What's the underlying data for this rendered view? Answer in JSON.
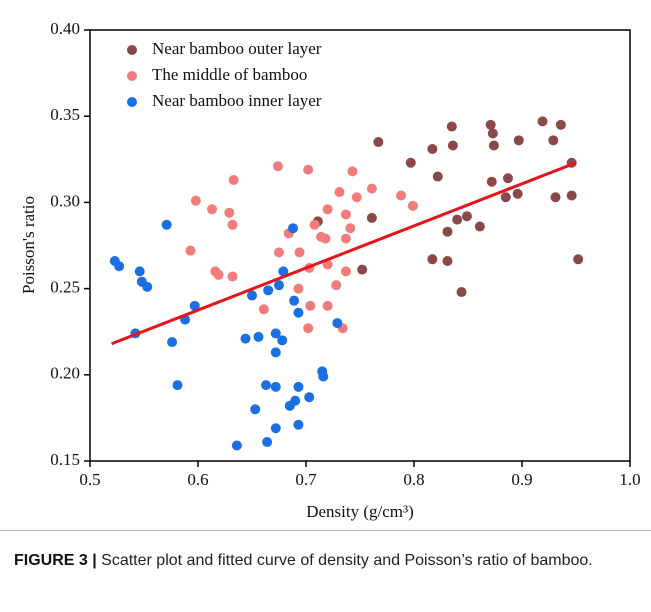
{
  "chart_data": {
    "type": "scatter",
    "xlabel": "Density (g/cm³)",
    "ylabel": "Poisson's ratio",
    "xlim": [
      0.5,
      1.0
    ],
    "ylim": [
      0.15,
      0.4
    ],
    "xticks": [
      0.5,
      0.6,
      0.7,
      0.8,
      0.9,
      {
        "value": 1.0,
        "label": "1.0"
      }
    ],
    "yticks": [
      0.15,
      {
        "value": 0.2,
        "label": "0.20"
      },
      0.25,
      {
        "value": 0.3,
        "label": "0.30"
      },
      0.35,
      {
        "value": 0.4,
        "label": "0.40"
      }
    ],
    "legend": "upper left",
    "series": [
      {
        "name": "Near bamboo outer layer",
        "color": "#8b4848",
        "x": [
          0.767,
          0.797,
          0.817,
          0.822,
          0.835,
          0.836,
          0.871,
          0.873,
          0.874,
          0.897,
          0.919,
          0.929,
          0.936,
          0.946,
          0.946,
          0.952,
          0.931,
          0.896,
          0.885,
          0.887,
          0.872,
          0.861,
          0.849,
          0.84,
          0.831,
          0.831,
          0.817,
          0.844,
          0.761,
          0.752,
          0.711
        ],
        "values": [
          0.335,
          0.323,
          0.331,
          0.315,
          0.344,
          0.333,
          0.345,
          0.34,
          0.333,
          0.336,
          0.347,
          0.336,
          0.345,
          0.323,
          0.304,
          0.267,
          0.303,
          0.305,
          0.303,
          0.314,
          0.312,
          0.286,
          0.292,
          0.29,
          0.283,
          0.266,
          0.267,
          0.248,
          0.291,
          0.261,
          0.289
        ]
      },
      {
        "name": "The middle of bamboo",
        "color": "#f27b7b",
        "x": [
          0.598,
          0.613,
          0.629,
          0.633,
          0.632,
          0.593,
          0.616,
          0.619,
          0.632,
          0.674,
          0.702,
          0.675,
          0.684,
          0.694,
          0.708,
          0.714,
          0.718,
          0.72,
          0.731,
          0.737,
          0.741,
          0.743,
          0.747,
          0.761,
          0.788,
          0.799,
          0.737,
          0.737,
          0.728,
          0.72,
          0.703,
          0.693,
          0.72,
          0.704,
          0.702,
          0.734,
          0.661
        ],
        "values": [
          0.301,
          0.296,
          0.294,
          0.313,
          0.287,
          0.272,
          0.26,
          0.258,
          0.257,
          0.321,
          0.319,
          0.271,
          0.282,
          0.271,
          0.287,
          0.28,
          0.279,
          0.296,
          0.306,
          0.293,
          0.285,
          0.318,
          0.303,
          0.308,
          0.304,
          0.298,
          0.279,
          0.26,
          0.252,
          0.264,
          0.262,
          0.25,
          0.24,
          0.24,
          0.227,
          0.227,
          0.238
        ]
      },
      {
        "name": "Near bamboo inner layer",
        "color": "#1a6fe3",
        "x": [
          0.523,
          0.527,
          0.546,
          0.548,
          0.553,
          0.542,
          0.571,
          0.576,
          0.581,
          0.588,
          0.597,
          0.644,
          0.656,
          0.65,
          0.665,
          0.679,
          0.675,
          0.672,
          0.678,
          0.672,
          0.688,
          0.689,
          0.693,
          0.663,
          0.672,
          0.693,
          0.685,
          0.69,
          0.703,
          0.715,
          0.716,
          0.729,
          0.653,
          0.672,
          0.693,
          0.664,
          0.636
        ],
        "values": [
          0.266,
          0.263,
          0.26,
          0.254,
          0.251,
          0.224,
          0.287,
          0.219,
          0.194,
          0.232,
          0.24,
          0.221,
          0.222,
          0.246,
          0.249,
          0.26,
          0.252,
          0.224,
          0.22,
          0.213,
          0.285,
          0.243,
          0.236,
          0.194,
          0.193,
          0.193,
          0.182,
          0.185,
          0.187,
          0.202,
          0.199,
          0.23,
          0.18,
          0.169,
          0.171,
          0.161,
          0.159
        ]
      }
    ],
    "fit_line": {
      "color": "#e5141b",
      "x": [
        0.52,
        0.95
      ],
      "y": [
        0.218,
        0.323
      ]
    }
  },
  "caption": {
    "label": "FIGURE 3 |",
    "text": " Scatter plot and fitted curve of density and Poisson’s ratio of bamboo."
  }
}
